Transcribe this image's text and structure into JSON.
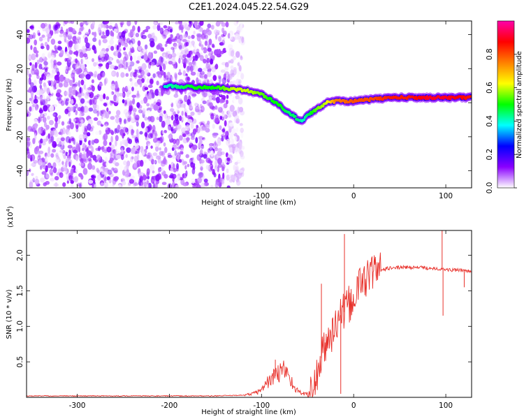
{
  "title": "C2E1.2024.045.22.54.G29",
  "chart_data": [
    {
      "type": "heatmap",
      "name": "spectrogram",
      "xlabel": "Height of straight line (km)",
      "ylabel": "Frequency (Hz)",
      "xlim": [
        -355,
        128
      ],
      "ylim": [
        -50,
        48
      ],
      "xticks": [
        -300,
        -200,
        -100,
        0,
        100
      ],
      "yticks": [
        -40,
        -20,
        0,
        20,
        40
      ],
      "xtick_labels": [
        "-300",
        "-200",
        "-100",
        "0",
        "100"
      ],
      "ytick_labels": [
        "-40",
        "-20",
        "0",
        "20",
        "40"
      ],
      "colorbar": {
        "label": "Normalized spectral amplitude",
        "range": [
          0,
          1
        ],
        "ticks": [
          0.0,
          0.2,
          0.4,
          0.6,
          0.8
        ],
        "tick_labels": [
          "0.0",
          "0.2",
          "0.4",
          "0.6",
          "0.8"
        ],
        "colors": [
          "#ffffff",
          "#8a00ff",
          "#0000ff",
          "#00ffff",
          "#00ff00",
          "#ffff00",
          "#ff8000",
          "#ff0000",
          "#ff00aa"
        ]
      },
      "ridge": {
        "x": [
          -205,
          -170,
          -150,
          -130,
          -115,
          -100,
          -90,
          -80,
          -70,
          -60,
          -55,
          -50,
          -40,
          -30,
          -20,
          0,
          20,
          40,
          60,
          80,
          100,
          128
        ],
        "y": [
          10,
          9,
          9,
          8,
          7,
          5,
          2,
          -2,
          -6,
          -10,
          -11,
          -7,
          -4,
          0,
          1,
          1,
          2,
          3,
          3,
          3,
          3,
          3
        ],
        "amplitude": [
          0.4,
          0.5,
          0.5,
          0.6,
          0.6,
          0.55,
          0.5,
          0.5,
          0.45,
          0.45,
          0.4,
          0.45,
          0.55,
          0.6,
          0.75,
          0.8,
          0.8,
          0.85,
          0.85,
          0.9,
          0.9,
          0.85
        ]
      },
      "noise_region_x": [
        -355,
        -120
      ],
      "noise_amplitude_range": [
        0.0,
        0.15
      ]
    },
    {
      "type": "line",
      "name": "snr",
      "xlabel": "Height of straight line (km)",
      "ylabel": "SNR (10 * v/v)",
      "y_multiplier_label": "(x10",
      "y_multiplier_exp": "4",
      "y_multiplier_close": ")",
      "xlim": [
        -355,
        128
      ],
      "ylim": [
        0,
        2.35
      ],
      "xticks": [
        -300,
        -200,
        -100,
        0,
        100
      ],
      "yticks": [
        0.5,
        1.0,
        1.5,
        2.0
      ],
      "xtick_labels": [
        "-300",
        "-200",
        "-100",
        "0",
        "100"
      ],
      "ytick_labels": [
        "0.5",
        "1.0",
        "1.5",
        "2.0"
      ],
      "color": "#e8302a",
      "series": [
        {
          "x": [
            -355,
            -300,
            -250,
            -200,
            -150,
            -120,
            -110,
            -100,
            -95,
            -90,
            -85,
            -80,
            -75,
            -70,
            -65,
            -60,
            -55,
            -50,
            -45,
            -40,
            -35,
            -30,
            -25,
            -20,
            -15,
            -10,
            -5,
            0,
            5,
            10,
            15,
            20,
            25,
            30,
            40,
            50,
            60,
            70,
            80,
            90,
            95,
            100,
            110,
            120,
            128
          ],
          "y": [
            0.02,
            0.02,
            0.02,
            0.02,
            0.02,
            0.03,
            0.05,
            0.1,
            0.2,
            0.25,
            0.3,
            0.35,
            0.4,
            0.3,
            0.15,
            0.08,
            0.05,
            0.05,
            0.1,
            0.3,
            0.55,
            0.75,
            0.85,
            1.0,
            1.15,
            1.2,
            1.3,
            1.4,
            1.55,
            1.65,
            1.7,
            1.75,
            1.78,
            1.8,
            1.82,
            1.83,
            1.83,
            1.83,
            1.82,
            1.82,
            1.8,
            1.8,
            1.79,
            1.79,
            1.78
          ]
        }
      ],
      "spikes": [
        {
          "x": -85,
          "y": 0.53
        },
        {
          "x": -35,
          "y": 1.6
        },
        {
          "x": -14,
          "y": 0.05
        },
        {
          "x": -10,
          "y": 2.3
        },
        {
          "x": 96,
          "y": 2.35
        },
        {
          "x": 97,
          "y": 1.15
        },
        {
          "x": 120,
          "y": 1.55
        }
      ]
    }
  ]
}
